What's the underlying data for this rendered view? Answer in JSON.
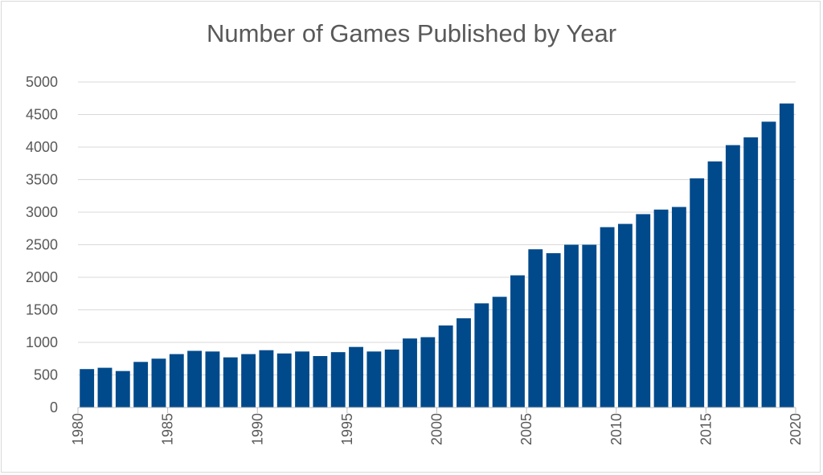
{
  "chart_data": {
    "type": "bar",
    "title": "Number of Games Published by Year",
    "xlabel": "",
    "ylabel": "",
    "ylim": [
      0,
      5000
    ],
    "yticks": [
      0,
      500,
      1000,
      1500,
      2000,
      2500,
      3000,
      3500,
      4000,
      4500,
      5000
    ],
    "xlim": [
      1980,
      2020
    ],
    "xticks": [
      1980,
      1985,
      1990,
      1995,
      2000,
      2005,
      2010,
      2015,
      2020
    ],
    "grid": true,
    "bar_color": "#004a8c",
    "x": [
      1980,
      1981,
      1982,
      1983,
      1984,
      1985,
      1986,
      1987,
      1988,
      1989,
      1990,
      1991,
      1992,
      1993,
      1994,
      1995,
      1996,
      1997,
      1998,
      1999,
      2000,
      2001,
      2002,
      2003,
      2004,
      2005,
      2006,
      2007,
      2008,
      2009,
      2010,
      2011,
      2012,
      2013,
      2014,
      2015,
      2016,
      2017,
      2018,
      2019
    ],
    "values": [
      590,
      610,
      560,
      700,
      750,
      820,
      870,
      860,
      770,
      820,
      880,
      830,
      860,
      790,
      850,
      930,
      860,
      890,
      1060,
      1080,
      1260,
      1370,
      1600,
      1700,
      2030,
      2430,
      2370,
      2500,
      2500,
      2770,
      2820,
      2970,
      3040,
      3080,
      3520,
      3780,
      4030,
      4150,
      4390,
      4670
    ]
  }
}
